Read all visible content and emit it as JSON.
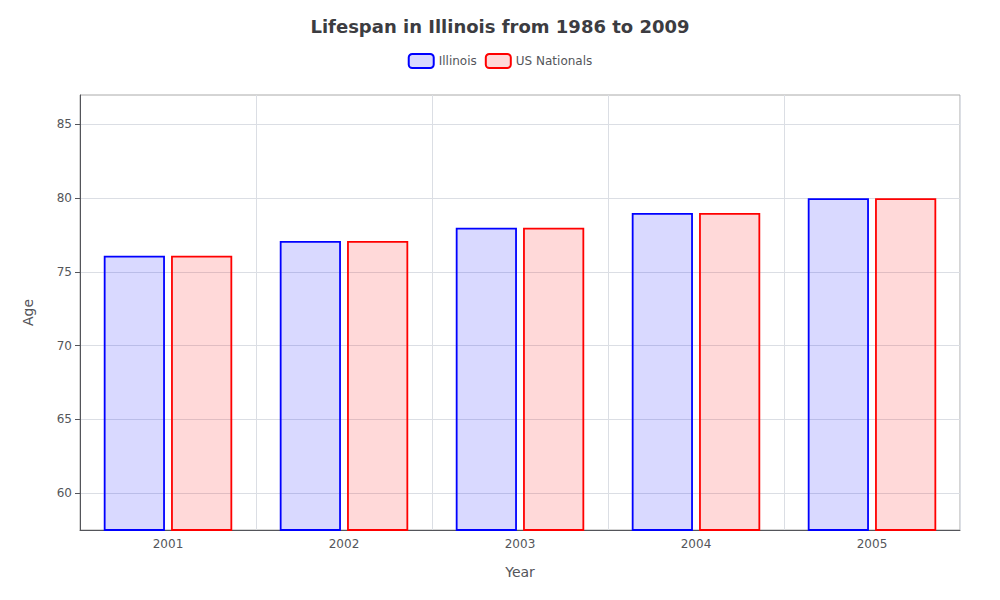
{
  "chart_data": {
    "type": "bar",
    "title": "Lifespan in Illinois from 1986 to 2009",
    "x_label": "Year",
    "y_label": "Age",
    "categories": [
      "2001",
      "2002",
      "2003",
      "2004",
      "2005"
    ],
    "series": [
      {
        "name": "Illinois",
        "color": "#0000ff",
        "values": [
          76.1,
          77.1,
          78.0,
          79.0,
          80.0
        ]
      },
      {
        "name": "US Nationals",
        "color": "#ff0000",
        "values": [
          76.1,
          77.1,
          78.0,
          79.0,
          80.0
        ]
      }
    ],
    "ylim": [
      57.5,
      87
    ],
    "yticks": [
      60,
      65,
      70,
      75,
      80,
      85
    ],
    "grid": true,
    "legend": "top"
  }
}
